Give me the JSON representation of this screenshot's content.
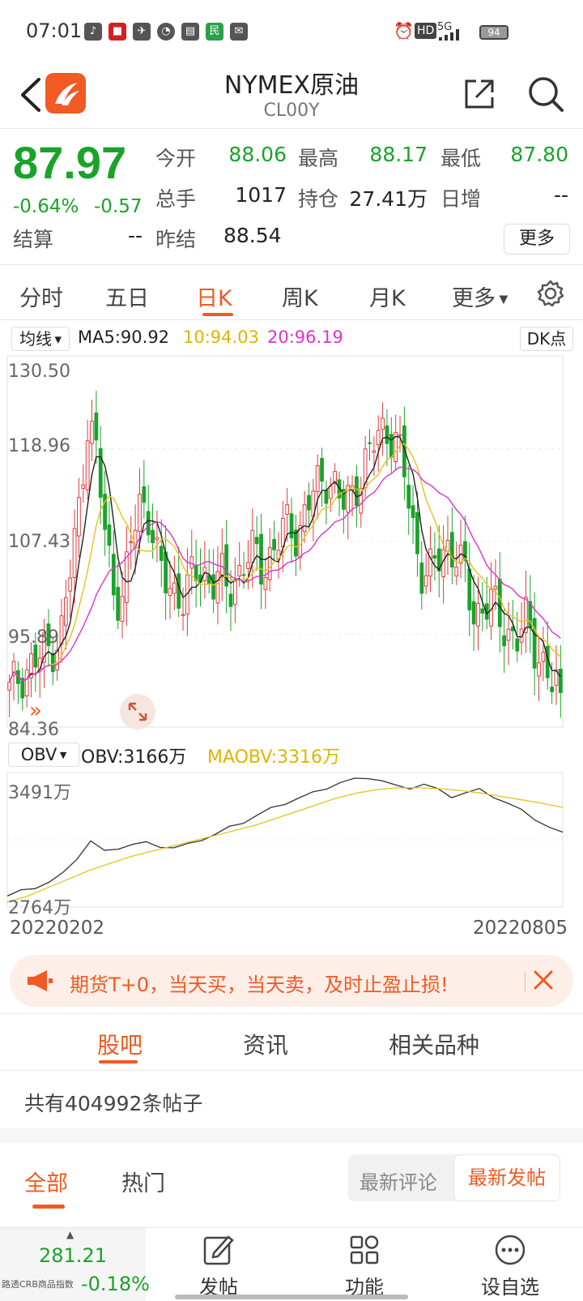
{
  "status_bar": {
    "time": "07:01",
    "network": "5G",
    "hd": "HD",
    "battery": "94",
    "icons": [
      "tiktok-icon",
      "app-red-icon",
      "bird-icon",
      "clock-app-icon",
      "book-icon",
      "min-app-icon",
      "mail-icon"
    ]
  },
  "header": {
    "title": "NYMEX原油",
    "subtitle": "CL00Y"
  },
  "quote": {
    "price": "87.97",
    "change_pct": "-0.64%",
    "change": "-0.57",
    "open_label": "今开",
    "open": "88.06",
    "high_label": "最高",
    "high": "88.17",
    "low_label": "最低",
    "low": "87.80",
    "volume_label": "总手",
    "volume": "1017",
    "oi_label": "持仓",
    "oi": "27.41万",
    "daily_inc_label": "日增",
    "daily_inc": "--",
    "settle_label": "结算",
    "settle": "--",
    "prev_settle_label": "昨结",
    "prev_settle": "88.54",
    "more_label": "更多"
  },
  "period_tabs": [
    {
      "label": "分时"
    },
    {
      "label": "五日"
    },
    {
      "label": "日K"
    },
    {
      "label": "周K"
    },
    {
      "label": "月K"
    },
    {
      "label": "更多"
    }
  ],
  "active_period": "日K",
  "chart_header": {
    "ma_select": "均线",
    "ma5": "MA5:90.92",
    "ma10": "10:94.03",
    "ma20": "20:96.19",
    "dk_label": "DK点"
  },
  "obv_header": {
    "select": "OBV",
    "obv": "OBV:3166万",
    "maobv": "MAOBV:3316万"
  },
  "colors": {
    "accent": "#f15a22",
    "down": "#1aa32a",
    "up": "#e03c3c",
    "ma5": "#222222",
    "ma10": "#e8c21c",
    "ma20": "#dd33cc"
  },
  "chart_data": [
    {
      "type": "candlestick",
      "title": "",
      "y_ticks": [
        "130.50",
        "118.96",
        "107.43",
        "95.89",
        "84.36"
      ],
      "ylim": [
        84.36,
        130.5
      ],
      "x_range": [
        "20220202",
        "20220805"
      ],
      "last_close": 87.97,
      "ma_lines": [
        {
          "name": "MA5",
          "last": 90.92,
          "color": "#222222"
        },
        {
          "name": "MA10",
          "last": 94.03,
          "color": "#e8c21c"
        },
        {
          "name": "MA20",
          "last": 96.19,
          "color": "#dd33cc"
        }
      ],
      "close_profile": [
        88,
        90,
        91,
        92,
        93,
        94,
        96,
        104,
        112,
        124,
        118,
        108,
        101,
        100,
        108,
        113,
        111,
        104,
        102,
        101,
        100,
        103,
        104,
        102,
        103,
        101,
        103,
        105,
        106,
        104,
        106,
        108,
        110,
        108,
        112,
        114,
        116,
        115,
        112,
        113,
        116,
        118,
        121,
        122,
        121,
        117,
        110,
        104,
        103,
        105,
        107,
        106,
        103,
        98,
        99,
        100,
        97,
        96,
        95,
        97,
        94,
        92,
        89,
        87.97
      ]
    },
    {
      "type": "line",
      "title": "",
      "y_ticks": [
        "3491万",
        "2764万"
      ],
      "ylim": [
        2764,
        3491
      ],
      "series": [
        {
          "name": "OBV",
          "last": 3166,
          "values": [
            2800,
            2830,
            2850,
            2880,
            2930,
            3020,
            3120,
            3060,
            3080,
            3100,
            3110,
            3090,
            3080,
            3100,
            3130,
            3160,
            3200,
            3230,
            3270,
            3310,
            3340,
            3370,
            3400,
            3430,
            3460,
            3480,
            3491,
            3470,
            3440,
            3430,
            3450,
            3420,
            3380,
            3400,
            3420,
            3380,
            3340,
            3300,
            3250,
            3200,
            3166
          ]
        },
        {
          "name": "MAOBV",
          "last": 3316,
          "values": [
            2764,
            2800,
            2850,
            2900,
            2950,
            2990,
            3030,
            3060,
            3090,
            3120,
            3150,
            3180,
            3210,
            3250,
            3290,
            3330,
            3370,
            3400,
            3420,
            3430,
            3430,
            3425,
            3415,
            3400,
            3380,
            3360,
            3340,
            3316
          ]
        }
      ]
    }
  ],
  "date_start": "20220202",
  "date_end": "20220805",
  "banner": {
    "text": "期货T+0，当天买，当天卖，及时止盈止损!"
  },
  "content_tabs": [
    {
      "label": "股吧"
    },
    {
      "label": "资讯"
    },
    {
      "label": "相关品种"
    }
  ],
  "posts": {
    "count_text": "共有404992条帖子"
  },
  "sub_tabs": [
    {
      "label": "全部"
    },
    {
      "label": "热门"
    }
  ],
  "sort": {
    "latest_comment": "最新评论",
    "latest_post": "最新发帖"
  },
  "bottom_bar": {
    "crb_value": "281.21",
    "crb_name": "路透CRB商品指数",
    "crb_pct": "-0.18%",
    "items": [
      {
        "label": "发帖",
        "icon": "edit-icon"
      },
      {
        "label": "功能",
        "icon": "grid-icon"
      },
      {
        "label": "设自选",
        "icon": "more-icon"
      }
    ]
  }
}
